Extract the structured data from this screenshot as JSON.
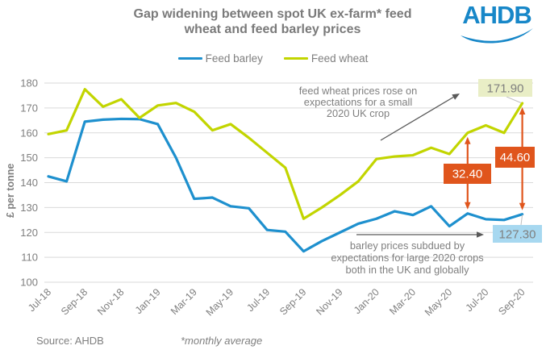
{
  "header": {
    "title_line1": "Gap widening between spot UK ex-farm* feed",
    "title_line2": "wheat and feed barley prices",
    "logo_text": "AHDB"
  },
  "legend": [
    {
      "label": "Feed barley",
      "color": "#1E90CE"
    },
    {
      "label": "Feed wheat",
      "color": "#C2D500"
    }
  ],
  "footer": {
    "source": "Source: AHDB",
    "note": "*monthly average"
  },
  "colors": {
    "barley": "#1E90CE",
    "wheat": "#C2D500",
    "gap_arrow_orange": "#E0551C",
    "grid": "#D9D9D9",
    "text_gray": "#7F7F7F",
    "annotation_arrow_gray": "#595959",
    "logo_blue": "#1787C8",
    "wheat_label_bg": "#E9EEC6",
    "barley_label_bg": "#A7D8F0",
    "connector_gray": "#BFBFBF"
  },
  "chart_data": {
    "type": "line",
    "title": "Gap widening between spot UK ex-farm* feed wheat and feed barley prices",
    "xlabel": "",
    "ylabel": "£ per tonne",
    "ylim": [
      100,
      180
    ],
    "ytick_step": 10,
    "grid": "horizontal",
    "legend_position": "top-center",
    "x": [
      "Jul-18",
      "Aug-18",
      "Sep-18",
      "Oct-18",
      "Nov-18",
      "Dec-18",
      "Jan-19",
      "Feb-19",
      "Mar-19",
      "Apr-19",
      "May-19",
      "Jun-19",
      "Jul-19",
      "Aug-19",
      "Sep-19",
      "Oct-19",
      "Nov-19",
      "Dec-19",
      "Jan-20",
      "Feb-20",
      "Mar-20",
      "Apr-20",
      "May-20",
      "Jun-20",
      "Jul-20",
      "Aug-20",
      "Sep-20"
    ],
    "xtick_labels": [
      "Jul-18",
      "Sep-18",
      "Nov-18",
      "Jan-19",
      "Mar-19",
      "May-19",
      "Jul-19",
      "Sep-19",
      "Nov-19",
      "Jan-20",
      "Mar-20",
      "May-20",
      "Jul-20",
      "Sep-20"
    ],
    "series": [
      {
        "name": "Feed barley",
        "color": "#1E90CE",
        "values": [
          142.5,
          140.5,
          164.5,
          165.3,
          165.6,
          165.5,
          163.5,
          150,
          133.5,
          134,
          130.5,
          129.7,
          121,
          120.3,
          112.4,
          116.5,
          120,
          123.5,
          125.5,
          128.5,
          127,
          130.5,
          122.5,
          127.6,
          125.3,
          125,
          127.3
        ]
      },
      {
        "name": "Feed wheat",
        "color": "#C2D500",
        "values": [
          159.5,
          161,
          177.5,
          170.5,
          173.5,
          166,
          171,
          172,
          168.5,
          161,
          163.5,
          158,
          152,
          146,
          125.5,
          130,
          135,
          140.5,
          149.5,
          150.5,
          151,
          154,
          151.5,
          160,
          163,
          160,
          171.9
        ]
      }
    ],
    "annotations": [
      {
        "lines": [
          "feed wheat prices rose on",
          "expectations for a small",
          "2020 UK crop"
        ]
      },
      {
        "lines": [
          "barley prices subdued by",
          "expectations for large 2020 crops",
          "both in the UK and globally"
        ]
      }
    ],
    "gaps": [
      {
        "label": "32.40",
        "month": "Jun-20",
        "from_series": "Feed wheat",
        "to_series": "Feed barley"
      },
      {
        "label": "44.60",
        "month": "Sep-20",
        "from_series": "Feed wheat",
        "to_series": "Feed barley"
      }
    ],
    "value_labels": [
      {
        "text": "171.90",
        "month": "Sep-20",
        "series": "Feed wheat",
        "bg": "#E9EEC6",
        "fg": "#7F7F7F"
      },
      {
        "text": "127.30",
        "month": "Sep-20",
        "series": "Feed barley",
        "bg": "#A7D8F0",
        "fg": "#7F7F7F"
      }
    ]
  }
}
